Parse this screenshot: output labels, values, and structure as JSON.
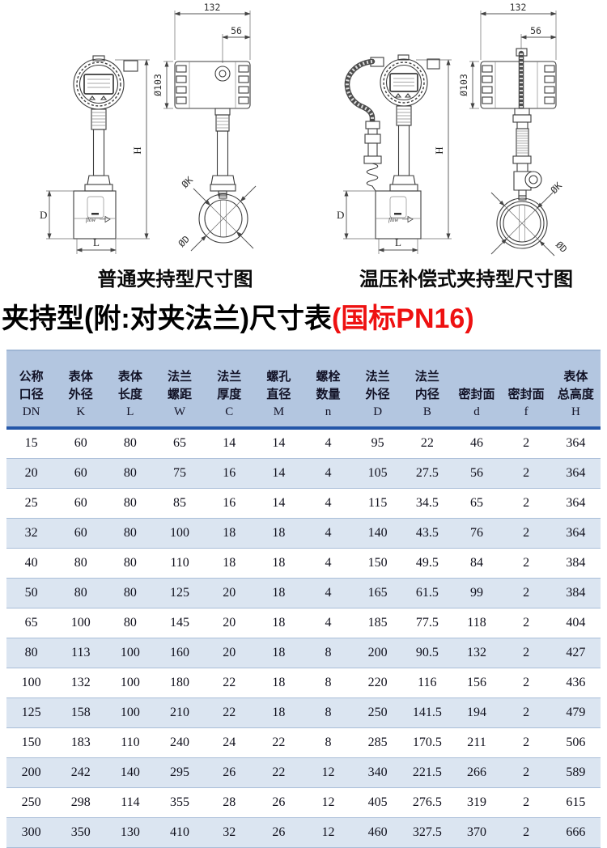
{
  "drawings": {
    "left_caption": "普通夹持型尺寸图",
    "right_caption": "温压补偿式夹持型尺寸图",
    "dim_labels": {
      "housing_width": "132",
      "conduit_offset": "56",
      "housing_diameter": "Ø103",
      "total_height": "H",
      "body_height": "D",
      "body_length": "L",
      "bolt_circle": "ØK",
      "flange_diameter": "ØD",
      "flow_mark": "flow"
    }
  },
  "title": {
    "black": "夹持型(附:对夹法兰)尺寸表",
    "red": "(国标PN16)"
  },
  "table": {
    "headers": [
      [
        "公称",
        "口径",
        "DN"
      ],
      [
        "表体",
        "外径",
        "K"
      ],
      [
        "表体",
        "长度",
        "L"
      ],
      [
        "法兰",
        "螺距",
        "W"
      ],
      [
        "法兰",
        "厚度",
        "C"
      ],
      [
        "螺孔",
        "直径",
        "M"
      ],
      [
        "螺栓",
        "数量",
        "n"
      ],
      [
        "法兰",
        "外径",
        "D"
      ],
      [
        "法兰",
        "内径",
        "B"
      ],
      [
        "密封面",
        "d"
      ],
      [
        "密封面",
        "f"
      ],
      [
        "表体",
        "总高度",
        "H"
      ]
    ],
    "rows": [
      [
        "15",
        "60",
        "80",
        "65",
        "14",
        "14",
        "4",
        "95",
        "22",
        "46",
        "2",
        "364"
      ],
      [
        "20",
        "60",
        "80",
        "75",
        "16",
        "14",
        "4",
        "105",
        "27.5",
        "56",
        "2",
        "364"
      ],
      [
        "25",
        "60",
        "80",
        "85",
        "16",
        "14",
        "4",
        "115",
        "34.5",
        "65",
        "2",
        "364"
      ],
      [
        "32",
        "60",
        "80",
        "100",
        "18",
        "18",
        "4",
        "140",
        "43.5",
        "76",
        "2",
        "364"
      ],
      [
        "40",
        "80",
        "80",
        "110",
        "18",
        "18",
        "4",
        "150",
        "49.5",
        "84",
        "2",
        "384"
      ],
      [
        "50",
        "80",
        "80",
        "125",
        "20",
        "18",
        "4",
        "165",
        "61.5",
        "99",
        "2",
        "384"
      ],
      [
        "65",
        "100",
        "80",
        "145",
        "20",
        "18",
        "4",
        "185",
        "77.5",
        "118",
        "2",
        "404"
      ],
      [
        "80",
        "113",
        "100",
        "160",
        "20",
        "18",
        "8",
        "200",
        "90.5",
        "132",
        "2",
        "427"
      ],
      [
        "100",
        "132",
        "100",
        "180",
        "22",
        "18",
        "8",
        "220",
        "116",
        "156",
        "2",
        "436"
      ],
      [
        "125",
        "158",
        "100",
        "210",
        "22",
        "18",
        "8",
        "250",
        "141.5",
        "194",
        "2",
        "479"
      ],
      [
        "150",
        "183",
        "110",
        "240",
        "24",
        "22",
        "8",
        "285",
        "170.5",
        "211",
        "2",
        "506"
      ],
      [
        "200",
        "242",
        "140",
        "295",
        "26",
        "22",
        "12",
        "340",
        "221.5",
        "266",
        "2",
        "589"
      ],
      [
        "250",
        "298",
        "114",
        "355",
        "28",
        "26",
        "12",
        "405",
        "276.5",
        "319",
        "2",
        "615"
      ],
      [
        "300",
        "350",
        "130",
        "410",
        "32",
        "26",
        "12",
        "460",
        "327.5",
        "370",
        "2",
        "666"
      ]
    ],
    "colors": {
      "header_bg": "#b3c6e0",
      "alt_row_bg": "#dbe5f1",
      "header_divider": "#2456a8",
      "row_divider": "#a9bdd8",
      "title_accent_red": "#ee1111",
      "drawing_line": "#3c3c3c"
    }
  }
}
